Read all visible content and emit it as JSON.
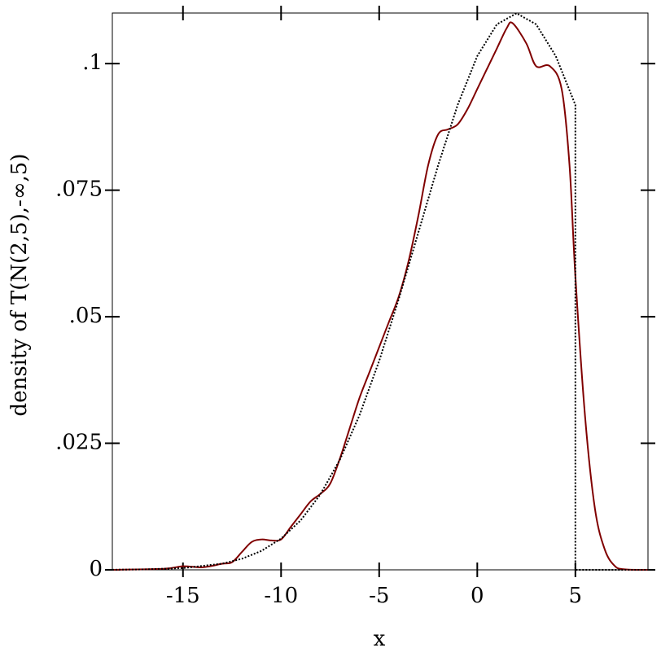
{
  "chart_data": {
    "type": "line",
    "x_label": "x",
    "y_label": "density of T(N(2,5),-∞,5)",
    "xlim": [
      -18.6,
      8.7
    ],
    "ylim": [
      0,
      0.11
    ],
    "xticks": [
      -15,
      -10,
      -5,
      0,
      5
    ],
    "yticks": [
      0,
      {
        "value": 0.025,
        "label": ".025"
      },
      {
        "value": 0.05,
        "label": ".05"
      },
      {
        "value": 0.075,
        "label": ".075"
      },
      {
        "value": 0.1,
        "label": ".1"
      }
    ],
    "series": [
      {
        "color": "#800000",
        "style": "solid",
        "x": [
          -18.6,
          -16,
          -15,
          -14,
          -13,
          -12.5,
          -12,
          -11.5,
          -11,
          -10.5,
          -10,
          -9.5,
          -9,
          -8.5,
          -8,
          -7.5,
          -7,
          -6.5,
          -6,
          -5.5,
          -5,
          -4.5,
          -4,
          -3.5,
          -3,
          -2.5,
          -2,
          -1.5,
          -1,
          -0.5,
          0,
          0.5,
          1,
          1.5,
          1.8,
          2.5,
          3,
          3.7,
          4.3,
          4.7,
          5,
          5.5,
          6,
          6.5,
          7,
          7.5,
          8.7
        ],
        "values": [
          0,
          0.0002,
          0.0007,
          0.0005,
          0.0012,
          0.0015,
          0.0035,
          0.0055,
          0.006,
          0.0058,
          0.006,
          0.0085,
          0.011,
          0.0135,
          0.015,
          0.017,
          0.022,
          0.028,
          0.034,
          0.039,
          0.044,
          0.049,
          0.054,
          0.061,
          0.07,
          0.08,
          0.086,
          0.087,
          0.088,
          0.091,
          0.095,
          0.099,
          0.103,
          0.107,
          0.108,
          0.104,
          0.0995,
          0.0995,
          0.095,
          0.08,
          0.058,
          0.03,
          0.012,
          0.004,
          0.0008,
          0.0001,
          0
        ]
      },
      {
        "color": "#000000",
        "style": "dotted",
        "x": [
          -18.6,
          -17,
          -15,
          -13,
          -12,
          -11,
          -10,
          -9,
          -8,
          -7,
          -6,
          -5,
          -4,
          -3,
          -2,
          -1,
          0,
          1,
          2,
          3,
          4,
          5,
          5,
          8.7
        ],
        "values": [
          2e-05,
          8e-05,
          0.00034,
          0.00122,
          0.00218,
          0.00374,
          0.00617,
          0.00977,
          0.01488,
          0.02177,
          0.03057,
          0.04127,
          0.05352,
          0.06669,
          0.07984,
          0.09184,
          0.1015,
          0.10777,
          0.10995,
          0.10777,
          0.1015,
          0.09184,
          0,
          0
        ]
      }
    ]
  }
}
